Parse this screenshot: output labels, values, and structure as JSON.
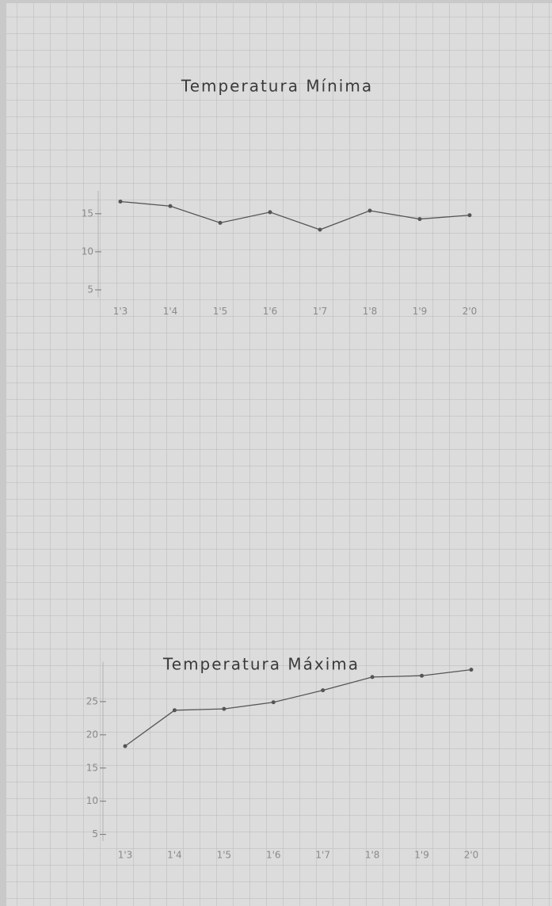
{
  "chart_data": [
    {
      "type": "line",
      "title": "Temperatura Mínima",
      "categories": [
        "1'3",
        "1'4",
        "1'5",
        "1'6",
        "1'7",
        "1'8",
        "1'9",
        "2'0"
      ],
      "values": [
        16.6,
        16.0,
        13.8,
        15.2,
        12.9,
        15.4,
        14.3,
        14.8
      ],
      "color": "#555555",
      "ylim": [
        4,
        18
      ],
      "yticks": [
        5,
        10,
        15
      ],
      "grid": false
    },
    {
      "type": "line",
      "title": "Temperatura Máxima",
      "categories": [
        "1'3",
        "1'4",
        "1'5",
        "1'6",
        "1'7",
        "1'8",
        "1'9",
        "2'0"
      ],
      "values": [
        18.3,
        23.7,
        23.9,
        24.9,
        26.7,
        28.7,
        28.9,
        29.8
      ],
      "color": "#555555",
      "ylim": [
        4,
        31
      ],
      "yticks": [
        5,
        10,
        15,
        20,
        25
      ],
      "grid": false
    }
  ]
}
